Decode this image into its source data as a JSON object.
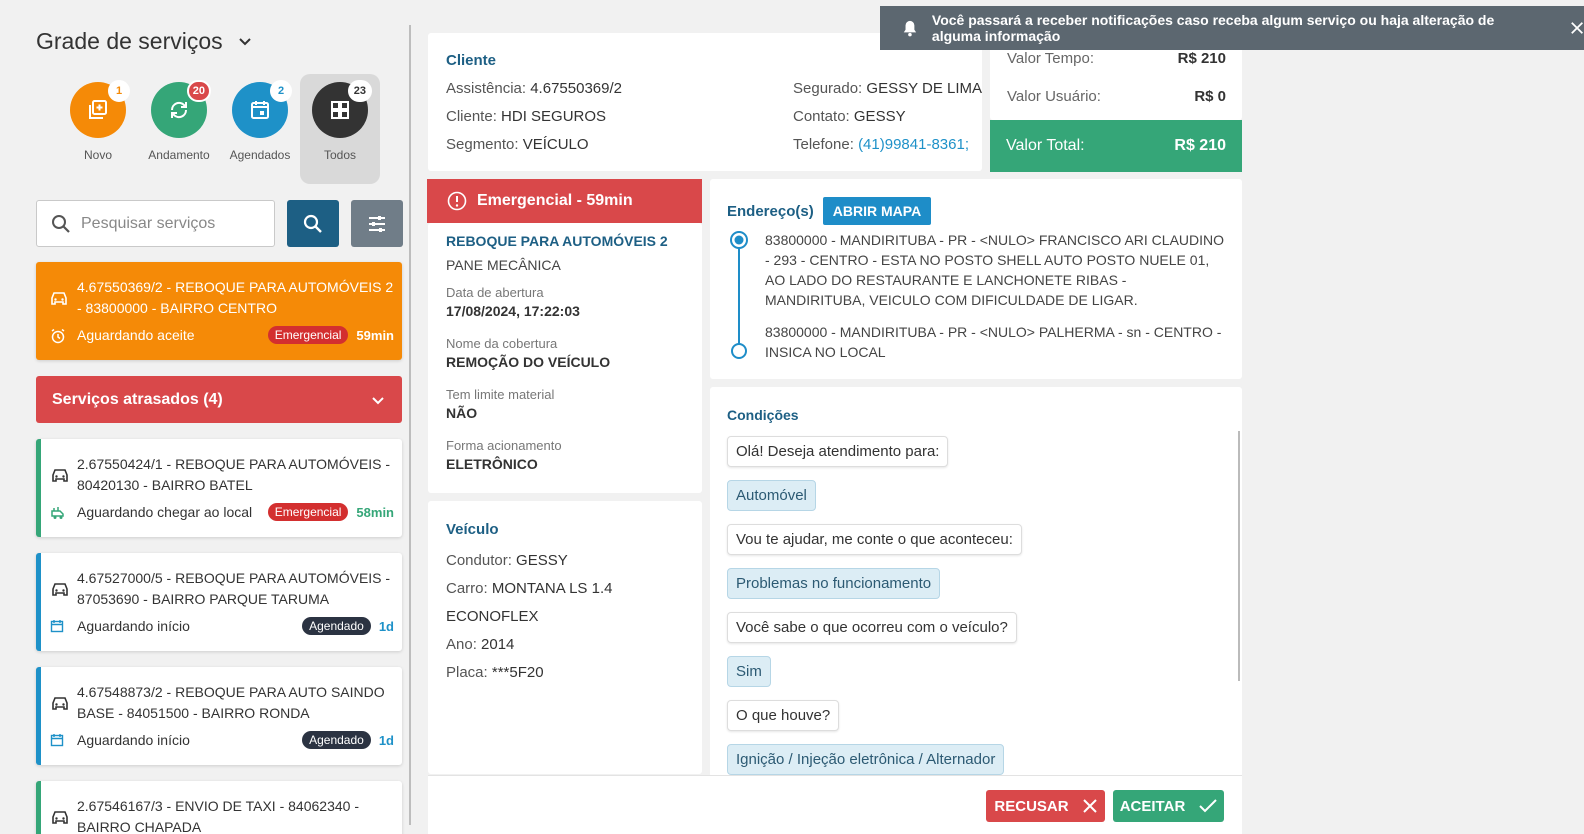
{
  "sidebar": {
    "title": "Grade de serviços",
    "filters": [
      {
        "label": "Novo",
        "count": "1",
        "color": "#f58a07",
        "icon": "add-box-icon"
      },
      {
        "label": "Andamento",
        "count": "20",
        "color": "#35a678",
        "icon": "sync-icon"
      },
      {
        "label": "Agendados",
        "count": "2",
        "color": "#1e91c8",
        "icon": "calendar-icon"
      },
      {
        "label": "Todos",
        "count": "23",
        "color": "#333333",
        "icon": "grid-icon"
      }
    ],
    "search_placeholder": "Pesquisar serviços",
    "highlight_card": {
      "title": "4.67550369/2 - REBOQUE PARA AUTOMÓVEIS 2 - 83800000 - BAIRRO CENTRO",
      "status": "Aguardando aceite",
      "tag": "Emergencial",
      "time": "59min"
    },
    "late_label": "Serviços atrasados (4)",
    "cards": [
      {
        "title": "2.67550424/1 - REBOQUE PARA AUTOMÓVEIS - 80420130 - BAIRRO BATEL",
        "status": "Aguardando chegar ao local",
        "tag": "Emergencial",
        "time": "58min"
      },
      {
        "title": "4.67527000/5 - REBOQUE PARA AUTOMÓVEIS - 87053690 - BAIRRO PARQUE TARUMA",
        "status": "Aguardando início",
        "tag": "Agendado",
        "time": "1d"
      },
      {
        "title": "4.67548873/2 - REBOQUE PARA AUTO SAINDO BASE - 84051500 - BAIRRO RONDA",
        "status": "Aguardando início",
        "tag": "Agendado",
        "time": "1d"
      },
      {
        "title": "2.67546167/3 - ENVIO DE TAXI - 84062340 - BAIRRO CHAPADA",
        "status": "",
        "tag": "",
        "time": ""
      }
    ]
  },
  "notification": "Você passará a receber notificações caso receba algum serviço ou haja alteração de alguma informação",
  "cliente": {
    "title": "Cliente",
    "assistencia_label": "Assistência:",
    "assistencia": "4.67550369/2",
    "cliente_label": "Cliente:",
    "cliente": "HDI SEGUROS",
    "segmento_label": "Segmento:",
    "segmento": "VEÍCULO",
    "segurado_label": "Segurado:",
    "segurado": "GESSY DE LIMA",
    "contato_label": "Contato:",
    "contato": "GESSY",
    "telefone_label": "Telefone:",
    "telefone": "(41)99841-8361;"
  },
  "valores": {
    "tempo_label": "Valor Tempo:",
    "tempo": "R$ 210",
    "usuario_label": "Valor Usuário:",
    "usuario": "R$ 0",
    "total_label": "Valor Total:",
    "total": "R$ 210"
  },
  "servico": {
    "emerg_label": "Emergencial - 59min",
    "nome": "REBOQUE PARA AUTOMÓVEIS 2",
    "motivo": "PANE MECÂNICA",
    "abertura_label": "Data de abertura",
    "abertura": "17/08/2024, 17:22:03",
    "cobertura_label": "Nome da cobertura",
    "cobertura": "REMOÇÃO DO VEÍCULO",
    "limite_label": "Tem limite material",
    "limite": "NÃO",
    "acionamento_label": "Forma acionamento",
    "acionamento": "ELETRÔNICO"
  },
  "veiculo": {
    "title": "Veículo",
    "condutor_label": "Condutor:",
    "condutor": "GESSY",
    "carro_label": "Carro:",
    "carro": "MONTANA LS 1.4 ECONOFLEX",
    "ano_label": "Ano:",
    "ano": "2014",
    "placa_label": "Placa:",
    "placa": "***5F20"
  },
  "enderecos": {
    "title": "Endereço(s)",
    "map_button": "ABRIR MAPA",
    "origem": "83800000 - MANDIRITUBA - PR - <NULO> FRANCISCO ARI CLAUDINO - 293 - CENTRO - ESTA NO POSTO SHELL AUTO POSTO NUELE 01, AO LADO DO RESTAURANTE E LANCHONETE RIBAS - MANDIRITUBA, VEICULO COM DIFICULDADE DE LIGAR.",
    "destino": "83800000 - MANDIRITUBA - PR - <NULO> PALHERMA - sn - CENTRO - INSICA NO LOCAL"
  },
  "condicoes": {
    "title": "Condições",
    "items": [
      {
        "text": "Olá! Deseja atendimento para:",
        "kind": "q"
      },
      {
        "text": "Automóvel",
        "kind": "a"
      },
      {
        "text": "Vou te ajudar, me conte o que aconteceu:",
        "kind": "q"
      },
      {
        "text": "Problemas no funcionamento",
        "kind": "a"
      },
      {
        "text": "Você sabe o que ocorreu com o veículo?",
        "kind": "q"
      },
      {
        "text": "Sim",
        "kind": "a"
      },
      {
        "text": "O que houve?",
        "kind": "q"
      },
      {
        "text": "Ignição / Injeção eletrônica / Alternador",
        "kind": "a"
      }
    ]
  },
  "actions": {
    "recusar": "RECUSAR",
    "aceitar": "ACEITAR"
  }
}
